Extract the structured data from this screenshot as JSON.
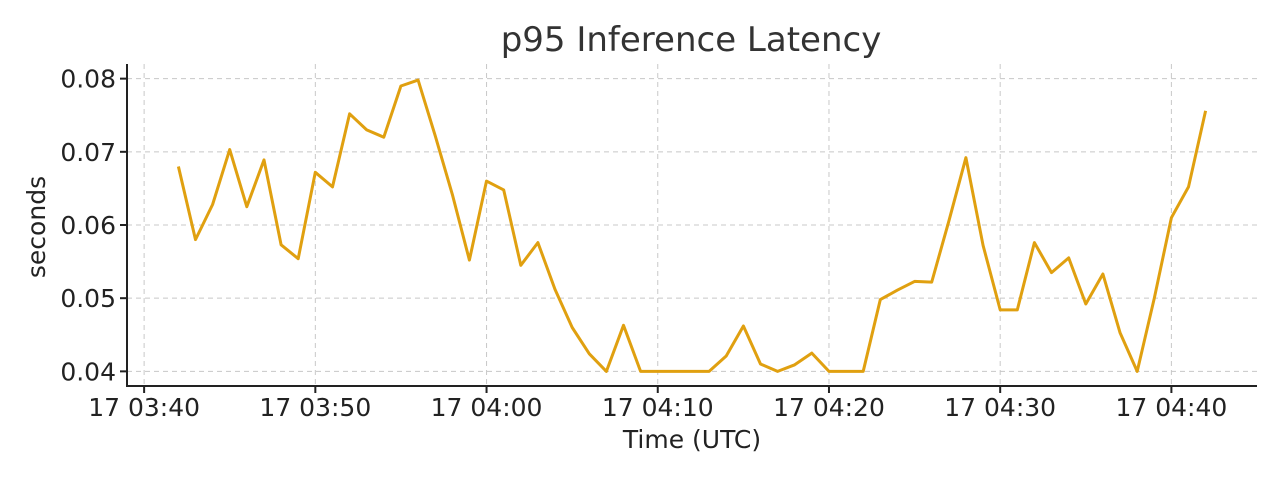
{
  "chart_data": {
    "type": "line",
    "title": "p95 Inference Latency",
    "xlabel": "Time (UTC)",
    "ylabel": "seconds",
    "grid": true,
    "colors": {
      "line": "#e0a010"
    },
    "xlim": [
      "03:39",
      "04:45"
    ],
    "ylim": [
      0.038,
      0.082
    ],
    "x_ticks": [
      {
        "t": "03:40",
        "label": "17 03:40"
      },
      {
        "t": "03:50",
        "label": "17 03:50"
      },
      {
        "t": "04:00",
        "label": "17 04:00"
      },
      {
        "t": "04:10",
        "label": "17 04:10"
      },
      {
        "t": "04:20",
        "label": "17 04:20"
      },
      {
        "t": "04:30",
        "label": "17 04:30"
      },
      {
        "t": "04:40",
        "label": "17 04:40"
      }
    ],
    "y_ticks": [
      {
        "v": 0.04,
        "label": "0.04"
      },
      {
        "v": 0.05,
        "label": "0.05"
      },
      {
        "v": 0.06,
        "label": "0.06"
      },
      {
        "v": 0.07,
        "label": "0.07"
      },
      {
        "v": 0.08,
        "label": "0.08"
      }
    ],
    "series": [
      {
        "x": [
          "03:42",
          "03:43",
          "03:44",
          "03:45",
          "03:46",
          "03:47",
          "03:48",
          "03:49",
          "03:50",
          "03:51",
          "03:52",
          "03:53",
          "03:54",
          "03:55",
          "03:56",
          "03:57",
          "03:58",
          "03:59",
          "04:00",
          "04:01",
          "04:02",
          "04:03",
          "04:04",
          "04:05",
          "04:06",
          "04:07",
          "04:08",
          "04:09",
          "04:10",
          "04:11",
          "04:12",
          "04:13",
          "04:14",
          "04:15",
          "04:16",
          "04:17",
          "04:18",
          "04:19",
          "04:20",
          "04:21",
          "04:22",
          "04:23",
          "04:24",
          "04:25",
          "04:26",
          "04:27",
          "04:28",
          "04:29",
          "04:30",
          "04:31",
          "04:32",
          "04:33",
          "04:34",
          "04:35",
          "04:36",
          "04:37",
          "04:38",
          "04:39",
          "04:40",
          "04:41",
          "04:42"
        ],
        "values": [
          0.068,
          0.058,
          0.0628,
          0.0703,
          0.0625,
          0.0689,
          0.0573,
          0.0554,
          0.0672,
          0.0652,
          0.0752,
          0.073,
          0.072,
          0.079,
          0.0798,
          0.0722,
          0.0642,
          0.0552,
          0.066,
          0.0648,
          0.0545,
          0.0576,
          0.0512,
          0.046,
          0.0424,
          0.04,
          0.0463,
          0.04,
          0.04,
          0.04,
          0.04,
          0.04,
          0.0421,
          0.0462,
          0.041,
          0.04,
          0.0409,
          0.0425,
          0.04,
          0.04,
          0.04,
          0.0498,
          0.0511,
          0.0523,
          0.0522,
          0.0605,
          0.0692,
          0.0572,
          0.0484,
          0.0484,
          0.0576,
          0.0535,
          0.0555,
          0.0492,
          0.0533,
          0.0453,
          0.04,
          0.05,
          0.061,
          0.0652,
          0.0756
        ]
      }
    ]
  }
}
